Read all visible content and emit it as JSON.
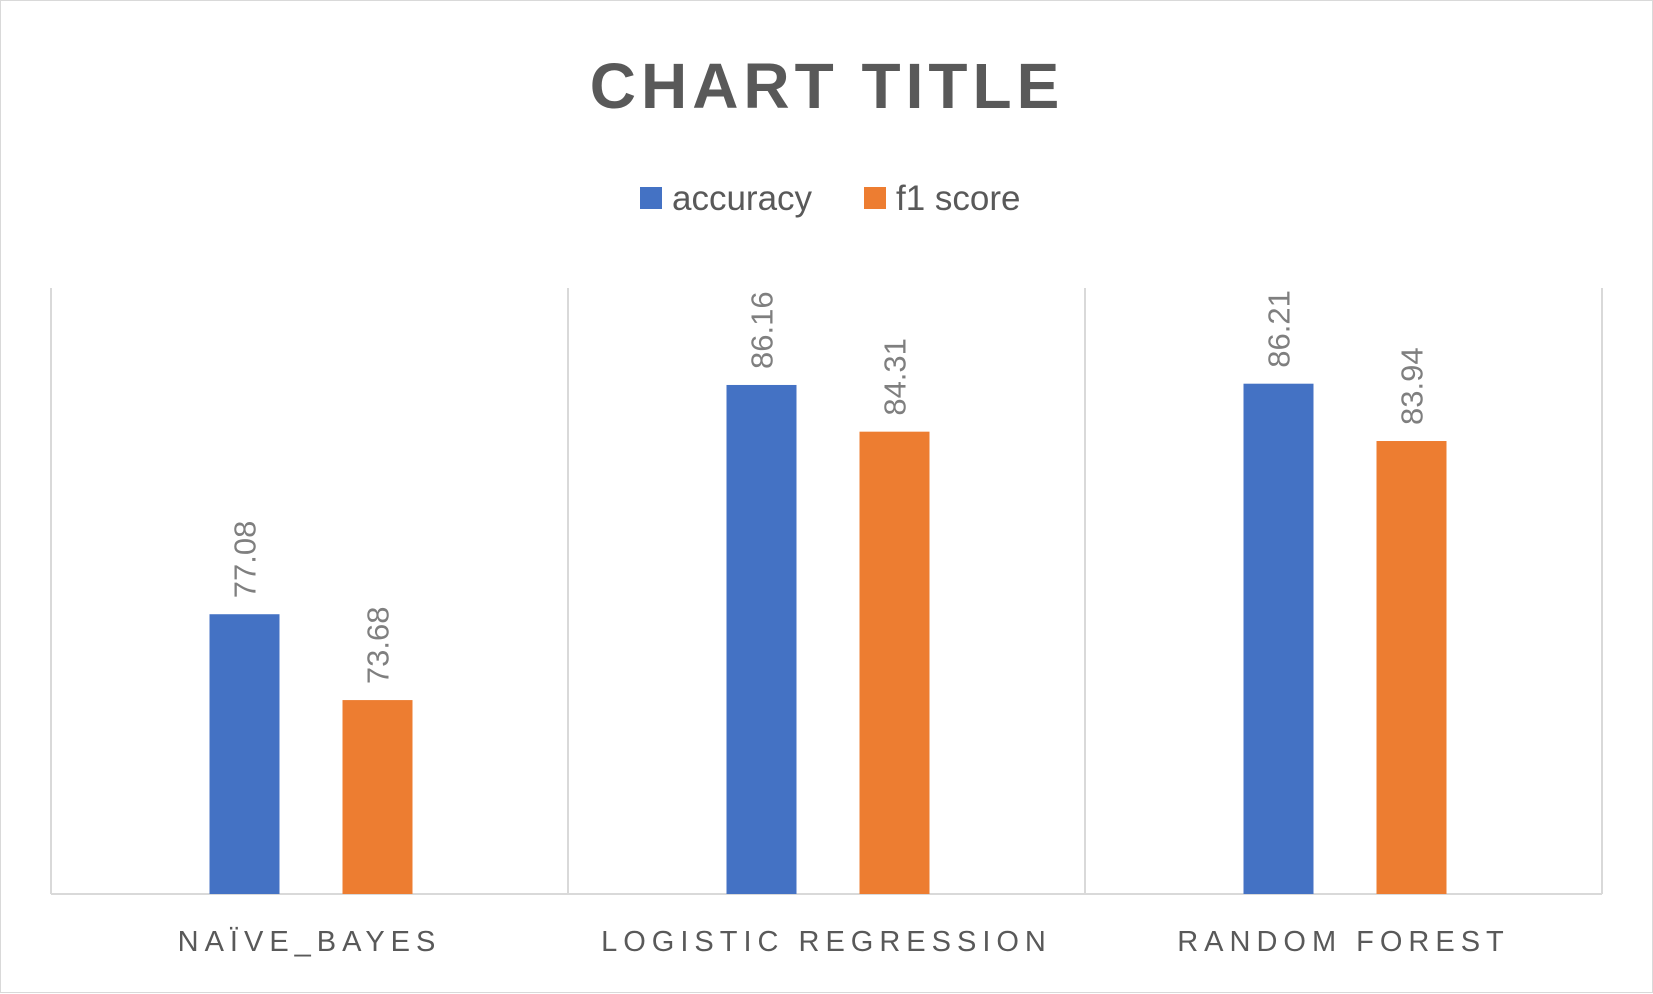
{
  "chart_data": {
    "type": "bar",
    "title": "CHART TITLE",
    "categories": [
      "NAÏVE_BAYES",
      "LOGISTIC REGRESSION",
      "RANDOM FOREST"
    ],
    "series": [
      {
        "name": "accuracy",
        "values": [
          77.08,
          86.16,
          86.21
        ],
        "color": "#4472c4"
      },
      {
        "name": "f1 score",
        "values": [
          73.68,
          84.31,
          83.94
        ],
        "color": "#ed7d31"
      }
    ],
    "value_labels": {
      "accuracy": [
        "77.08",
        "86.16",
        "86.21"
      ],
      "f1 score": [
        "73.68",
        "84.31",
        "83.94"
      ]
    },
    "xlabel": "",
    "ylabel": "",
    "ylim": [
      66,
      90
    ],
    "legend": "top",
    "gridlines": "vertical category separators",
    "data_label_orientation": "rotated vertical",
    "colors": {
      "text": "#595959",
      "value_labels": "#7f7f7f",
      "gridlines": "#d9d9d9"
    }
  }
}
